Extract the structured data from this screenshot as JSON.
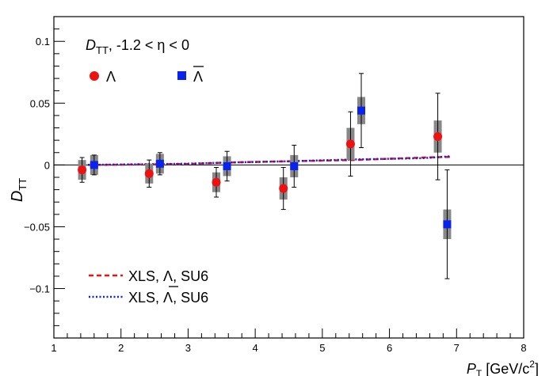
{
  "chart_data": {
    "type": "scatter",
    "xlabel_main": "P",
    "xlabel_sub": "T",
    "xlabel_unit": " [GeV/c",
    "xlabel_sup": "2",
    "xlabel_close": "]",
    "ylabel_main": "D",
    "ylabel_sub": "TT",
    "xlim": [
      1,
      8
    ],
    "ylim": [
      -0.14,
      0.12
    ],
    "x_ticks": [
      1,
      2,
      3,
      4,
      5,
      6,
      7,
      8
    ],
    "y_ticks": [
      -0.1,
      -0.05,
      0,
      0.05,
      0.1
    ],
    "x_tick_labels": [
      "1",
      "2",
      "3",
      "4",
      "5",
      "6",
      "7",
      "8"
    ],
    "y_tick_labels": [
      "−0.1",
      "−0.05",
      "0",
      "0.05",
      "0.1"
    ],
    "annotation": {
      "main": "D",
      "sub": "TT",
      "rest": ",  -1.2 < η < 0"
    },
    "zero_line": true,
    "series": [
      {
        "name": "Λ",
        "marker": "circle",
        "color": "#ee1111",
        "points": [
          {
            "x": 1.42,
            "y": -0.004,
            "stat": 0.01,
            "sys": 0.008
          },
          {
            "x": 2.42,
            "y": -0.007,
            "stat": 0.011,
            "sys": 0.008
          },
          {
            "x": 3.42,
            "y": -0.014,
            "stat": 0.012,
            "sys": 0.008
          },
          {
            "x": 4.42,
            "y": -0.019,
            "stat": 0.017,
            "sys": 0.009
          },
          {
            "x": 5.42,
            "y": 0.017,
            "stat": 0.026,
            "sys": 0.013
          },
          {
            "x": 6.72,
            "y": 0.023,
            "stat": 0.035,
            "sys": 0.013
          }
        ]
      },
      {
        "name": "Λ̄",
        "marker": "square",
        "color": "#0a22ee",
        "points": [
          {
            "x": 1.6,
            "y": 0.0,
            "stat": 0.008,
            "sys": 0.008
          },
          {
            "x": 2.58,
            "y": 0.001,
            "stat": 0.009,
            "sys": 0.008
          },
          {
            "x": 3.58,
            "y": -0.001,
            "stat": 0.012,
            "sys": 0.008
          },
          {
            "x": 4.58,
            "y": -0.001,
            "stat": 0.017,
            "sys": 0.009
          },
          {
            "x": 5.58,
            "y": 0.044,
            "stat": 0.03,
            "sys": 0.011
          },
          {
            "x": 6.86,
            "y": -0.048,
            "stat": 0.044,
            "sys": 0.012
          }
        ]
      }
    ],
    "curves": [
      {
        "name": "XLS, Λ, SU6",
        "label_main": "XLS, ",
        "label_sym": "Λ",
        "label_rest": ", SU6",
        "color": "#ee1111",
        "style": "dashed",
        "x": [
          1.4,
          2.0,
          3.0,
          3.6,
          4.5,
          5.5,
          6.5,
          6.9
        ],
        "y": [
          0.0,
          0.0002,
          0.0008,
          0.002,
          0.003,
          0.004,
          0.006,
          0.0065
        ]
      },
      {
        "name": "XLS, Λ̄, SU6",
        "label_main": "XLS, ",
        "label_sym": "Λ",
        "label_rest": ", SU6",
        "color": "#0a22ee",
        "style": "dotted",
        "x": [
          1.4,
          2.0,
          3.0,
          3.6,
          4.5,
          5.5,
          6.5,
          6.9
        ],
        "y": [
          0.0,
          0.0004,
          0.001,
          0.002,
          0.003,
          0.0045,
          0.0055,
          0.007
        ]
      }
    ],
    "legend_placement": "bottom-left",
    "marker_legend": [
      {
        "label": "Λ",
        "color": "#ee1111",
        "marker": "circle"
      },
      {
        "label": "Λ",
        "color": "#0a22ee",
        "marker": "square",
        "overline": true
      }
    ]
  }
}
